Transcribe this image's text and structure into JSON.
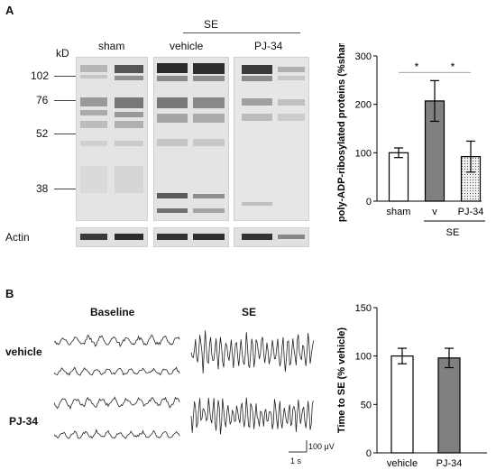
{
  "panel_a": {
    "letter": "A",
    "kd_label": "kD",
    "markers": [
      "102",
      "76",
      "52",
      "38"
    ],
    "group_se": "SE",
    "groups": [
      "sham",
      "vehicle",
      "PJ-34"
    ],
    "actin_label": "Actin"
  },
  "panel_b": {
    "letter": "B",
    "col_baseline": "Baseline",
    "col_se": "SE",
    "row_vehicle": "vehicle",
    "row_pj34": "PJ-34",
    "scale_uv": "100 μV",
    "scale_s": "1 s"
  },
  "chart_data": [
    {
      "type": "bar",
      "ylabel": "poly-ADP-ribosylated proteins (%sham)",
      "ylim": [
        0,
        300
      ],
      "yticks": [
        "0",
        "100",
        "200",
        "300"
      ],
      "categories": [
        "sham",
        "v",
        "PJ-34"
      ],
      "group_label": "SE",
      "values": [
        100,
        207,
        92
      ],
      "errors": [
        10,
        42,
        32
      ],
      "fills": [
        "#ffffff",
        "#808080",
        "dotted"
      ],
      "significance": [
        "*",
        "*"
      ]
    },
    {
      "type": "bar",
      "ylabel": "Time to SE (% vehicle)",
      "ylim": [
        0,
        150
      ],
      "yticks": [
        "0",
        "50",
        "100",
        "150"
      ],
      "categories": [
        "vehicle",
        "PJ-34"
      ],
      "values": [
        100,
        98
      ],
      "errors": [
        8,
        10
      ],
      "fills": [
        "#ffffff",
        "#808080"
      ]
    }
  ]
}
